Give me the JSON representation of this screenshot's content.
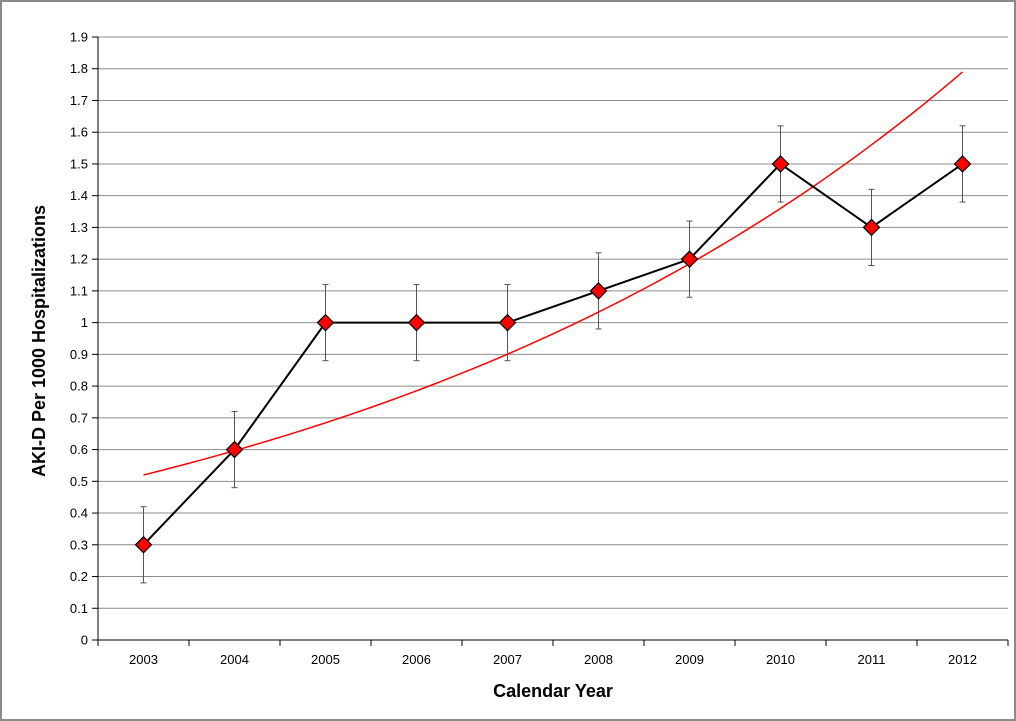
{
  "chart_data": {
    "type": "line",
    "title": "",
    "xlabel": "Calendar Year",
    "ylabel": "AKI-D Per 1000 Hospitalizations",
    "categories": [
      "2003",
      "2004",
      "2005",
      "2006",
      "2007",
      "2008",
      "2009",
      "2010",
      "2011",
      "2012"
    ],
    "ylim": [
      0,
      1.9
    ],
    "yticks": [
      "0",
      "0.1",
      "0.2",
      "0.3",
      "0.4",
      "0.5",
      "0.6",
      "0.7",
      "0.8",
      "0.9",
      "1",
      "1.1",
      "1.2",
      "1.3",
      "1.4",
      "1.5",
      "1.6",
      "1.7",
      "1.8",
      "1.9"
    ],
    "grid": true,
    "legend": "none",
    "series": [
      {
        "values": [
          0.3,
          0.6,
          1.0,
          1.0,
          1.0,
          1.1,
          1.2,
          1.5,
          1.3,
          1.5
        ],
        "error_low": [
          0.18,
          0.48,
          0.88,
          0.88,
          0.88,
          0.98,
          1.08,
          1.38,
          1.18,
          1.38
        ],
        "error_high": [
          0.42,
          0.72,
          1.12,
          1.12,
          1.12,
          1.22,
          1.32,
          1.62,
          1.42,
          1.62
        ],
        "line_color": "#000000",
        "marker": "diamond",
        "marker_color": "#ff0000"
      },
      {
        "fit": "exponential",
        "values": [
          0.52,
          0.6,
          0.69,
          0.79,
          0.9,
          1.03,
          1.19,
          1.36,
          1.56,
          1.79
        ],
        "line_color": "#ff0000"
      }
    ]
  }
}
